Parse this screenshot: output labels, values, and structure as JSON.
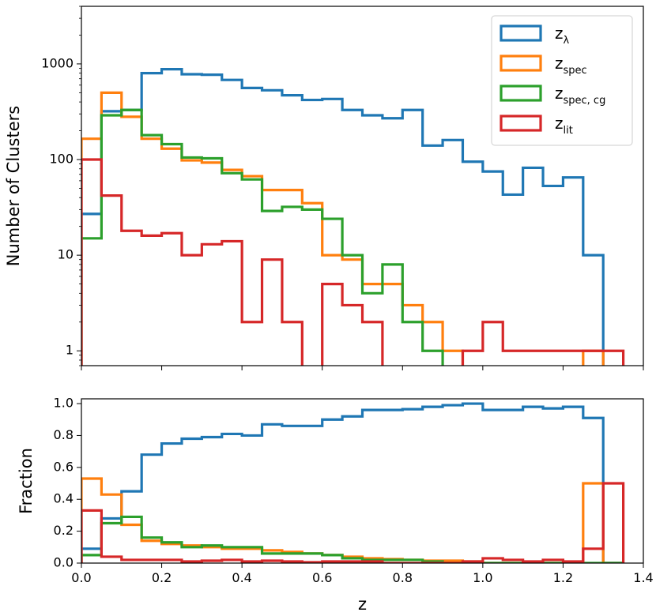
{
  "chart_data": [
    {
      "type": "histogram-step",
      "panel": "top",
      "ylabel": "Number of Clusters",
      "yscale": "log",
      "ylim": [
        0.7,
        4000
      ],
      "xlim": [
        0.0,
        1.4
      ],
      "yticks": [
        {
          "value": 1,
          "label": "1"
        },
        {
          "value": 10,
          "label": "10"
        },
        {
          "value": 100,
          "label": "100"
        },
        {
          "value": 1000,
          "label": "1000"
        }
      ],
      "bin_edges": [
        0.0,
        0.05,
        0.1,
        0.15,
        0.2,
        0.25,
        0.3,
        0.35,
        0.4,
        0.45,
        0.5,
        0.55,
        0.6,
        0.65,
        0.7,
        0.75,
        0.8,
        0.85,
        0.9,
        0.95,
        1.0,
        1.05,
        1.1,
        1.15,
        1.2,
        1.25,
        1.3,
        1.35
      ],
      "legend": {
        "placement": "top-right"
      },
      "series": [
        {
          "name": "z_lambda",
          "legend_main": "z",
          "legend_sub": "λ",
          "color": "#1f77b4",
          "values": [
            27,
            320,
            330,
            800,
            880,
            780,
            770,
            680,
            560,
            530,
            470,
            420,
            430,
            330,
            290,
            270,
            330,
            140,
            160,
            95,
            75,
            43,
            82,
            53,
            65,
            10,
            0
          ]
        },
        {
          "name": "z_spec",
          "legend_main": "z",
          "legend_sub": "spec",
          "color": "#ff7f0e",
          "values": [
            165,
            500,
            280,
            165,
            130,
            98,
            93,
            78,
            67,
            48,
            48,
            35,
            10,
            9,
            5,
            5,
            3,
            2,
            1,
            0,
            0,
            0,
            0,
            0,
            0,
            1,
            0
          ]
        },
        {
          "name": "z_spec,cg",
          "legend_main": "z",
          "legend_sub": "spec, cg",
          "color": "#2ca02c",
          "values": [
            15,
            290,
            330,
            180,
            145,
            105,
            103,
            72,
            62,
            29,
            32,
            30,
            24,
            10,
            4,
            8,
            2,
            1,
            0,
            0,
            0,
            0,
            0,
            0,
            0,
            0,
            0
          ]
        },
        {
          "name": "z_lit",
          "legend_main": "z",
          "legend_sub": "lit",
          "color": "#d62728",
          "values": [
            100,
            42,
            18,
            16,
            17,
            10,
            13,
            14,
            2,
            9,
            2,
            0,
            5,
            3,
            2,
            0,
            0,
            0,
            0,
            1,
            2,
            1,
            1,
            1,
            1,
            1,
            1
          ]
        }
      ]
    },
    {
      "type": "histogram-step",
      "panel": "bottom",
      "xlabel": "z",
      "ylabel": "Fraction",
      "ylim": [
        0.0,
        1.03
      ],
      "xlim": [
        0.0,
        1.4
      ],
      "yticks": [
        {
          "value": 0.0,
          "label": "0.0"
        },
        {
          "value": 0.2,
          "label": "0.2"
        },
        {
          "value": 0.4,
          "label": "0.4"
        },
        {
          "value": 0.6,
          "label": "0.6"
        },
        {
          "value": 0.8,
          "label": "0.8"
        },
        {
          "value": 1.0,
          "label": "1.0"
        }
      ],
      "xticks": [
        {
          "value": 0.0,
          "label": "0.0"
        },
        {
          "value": 0.2,
          "label": "0.2"
        },
        {
          "value": 0.4,
          "label": "0.4"
        },
        {
          "value": 0.6,
          "label": "0.6"
        },
        {
          "value": 0.8,
          "label": "0.8"
        },
        {
          "value": 1.0,
          "label": "1.0"
        },
        {
          "value": 1.2,
          "label": "1.2"
        },
        {
          "value": 1.4,
          "label": "1.4"
        }
      ],
      "bin_edges": [
        0.0,
        0.05,
        0.1,
        0.15,
        0.2,
        0.25,
        0.3,
        0.35,
        0.4,
        0.45,
        0.5,
        0.55,
        0.6,
        0.65,
        0.7,
        0.75,
        0.8,
        0.85,
        0.9,
        0.95,
        1.0,
        1.05,
        1.1,
        1.15,
        1.2,
        1.25,
        1.3,
        1.35
      ],
      "series": [
        {
          "name": "z_lambda",
          "color": "#1f77b4",
          "values": [
            0.09,
            0.28,
            0.45,
            0.68,
            0.75,
            0.78,
            0.79,
            0.81,
            0.8,
            0.87,
            0.86,
            0.86,
            0.9,
            0.92,
            0.96,
            0.96,
            0.965,
            0.98,
            0.99,
            1.0,
            0.96,
            0.96,
            0.98,
            0.97,
            0.98,
            0.91,
            0.0
          ]
        },
        {
          "name": "z_spec",
          "color": "#ff7f0e",
          "values": [
            0.53,
            0.43,
            0.24,
            0.14,
            0.12,
            0.11,
            0.1,
            0.09,
            0.09,
            0.08,
            0.07,
            0.06,
            0.05,
            0.04,
            0.03,
            0.025,
            0.02,
            0.015,
            0.015,
            0.01,
            0.0,
            0.0,
            0.0,
            0.0,
            0.0,
            0.5,
            0.0
          ]
        },
        {
          "name": "z_spec,cg",
          "color": "#2ca02c",
          "values": [
            0.05,
            0.25,
            0.29,
            0.16,
            0.13,
            0.1,
            0.11,
            0.1,
            0.1,
            0.06,
            0.06,
            0.06,
            0.05,
            0.03,
            0.02,
            0.02,
            0.02,
            0.01,
            0.0,
            0.0,
            0.0,
            0.0,
            0.0,
            0.0,
            0.0,
            0.0,
            0.0
          ]
        },
        {
          "name": "z_lit",
          "color": "#d62728",
          "values": [
            0.33,
            0.04,
            0.02,
            0.02,
            0.02,
            0.01,
            0.015,
            0.02,
            0.01,
            0.015,
            0.01,
            0.005,
            0.01,
            0.01,
            0.01,
            0.0,
            0.0,
            0.0,
            0.0,
            0.01,
            0.03,
            0.02,
            0.01,
            0.02,
            0.01,
            0.09,
            0.5
          ]
        }
      ]
    }
  ]
}
